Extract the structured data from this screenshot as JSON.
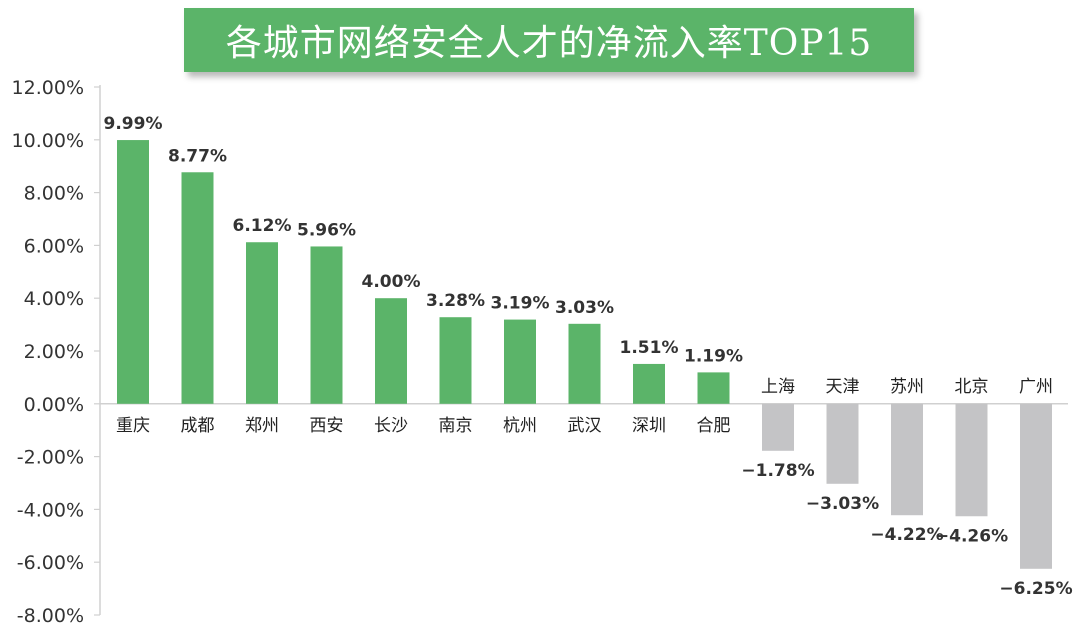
{
  "chart_data": {
    "type": "bar",
    "title": "各城市网络安全人才的净流入率TOP15",
    "categories": [
      "重庆",
      "成都",
      "郑州",
      "西安",
      "长沙",
      "南京",
      "杭州",
      "武汉",
      "深圳",
      "合肥",
      "上海",
      "天津",
      "苏州",
      "北京",
      "广州"
    ],
    "values": [
      9.99,
      8.77,
      6.12,
      5.96,
      4.0,
      3.28,
      3.19,
      3.03,
      1.51,
      1.19,
      -1.78,
      -3.03,
      -4.22,
      -4.26,
      -6.25
    ],
    "value_labels": [
      "9.99%",
      "8.77%",
      "6.12%",
      "5.96%",
      "4.00%",
      "3.28%",
      "3.19%",
      "3.03%",
      "1.51%",
      "1.19%",
      "−1.78%",
      "−3.03%",
      "−4.22%",
      "−4.26%",
      "−6.25%"
    ],
    "ylim": [
      -8,
      12
    ],
    "yticks": [
      12,
      10,
      8,
      6,
      4,
      2,
      0,
      -2,
      -4,
      -6,
      -8
    ],
    "ytick_labels": [
      "12.00%",
      "10.00%",
      "8.00%",
      "6.00%",
      "4.00%",
      "2.00%",
      "0.00%",
      "-2.00%",
      "-4.00%",
      "-6.00%",
      "-8.00%"
    ],
    "xlabel": "",
    "ylabel": "",
    "grid": false,
    "colors": {
      "positive": "#5bb469",
      "negative": "#c4c4c6",
      "axis": "#d0d0d0",
      "title_bg": "#5bb469"
    }
  }
}
